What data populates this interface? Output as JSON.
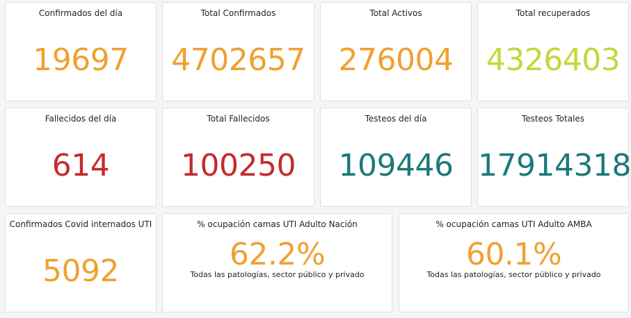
{
  "colors": {
    "orange": "#f0a030",
    "green": "#c5d63a",
    "red": "#c42b2b",
    "teal": "#1a7a7a"
  },
  "cards": [
    {
      "title": "Confirmados del día",
      "value": "19697"
    },
    {
      "title": "Total Confirmados",
      "value": "4702657"
    },
    {
      "title": "Total Activos",
      "value": "276004"
    },
    {
      "title": "Total recuperados",
      "value": "4326403"
    },
    {
      "title": "Fallecidos del día",
      "value": "614"
    },
    {
      "title": "Total Fallecidos",
      "value": "100250"
    },
    {
      "title": "Testeos del día",
      "value": "109446"
    },
    {
      "title": "Testeos Totales",
      "value": "17914318"
    },
    {
      "title": "Confirmados Covid internados UTI",
      "value": "5092"
    },
    {
      "title": "% ocupación camas UTI Adulto Nación",
      "value": "62.2%",
      "subtitle": "Todas las patologías, sector público y privado"
    },
    {
      "title": "% ocupación camas UTI Adulto AMBA",
      "value": "60.1%",
      "subtitle": "Todas las patologías, sector público y privado"
    }
  ]
}
